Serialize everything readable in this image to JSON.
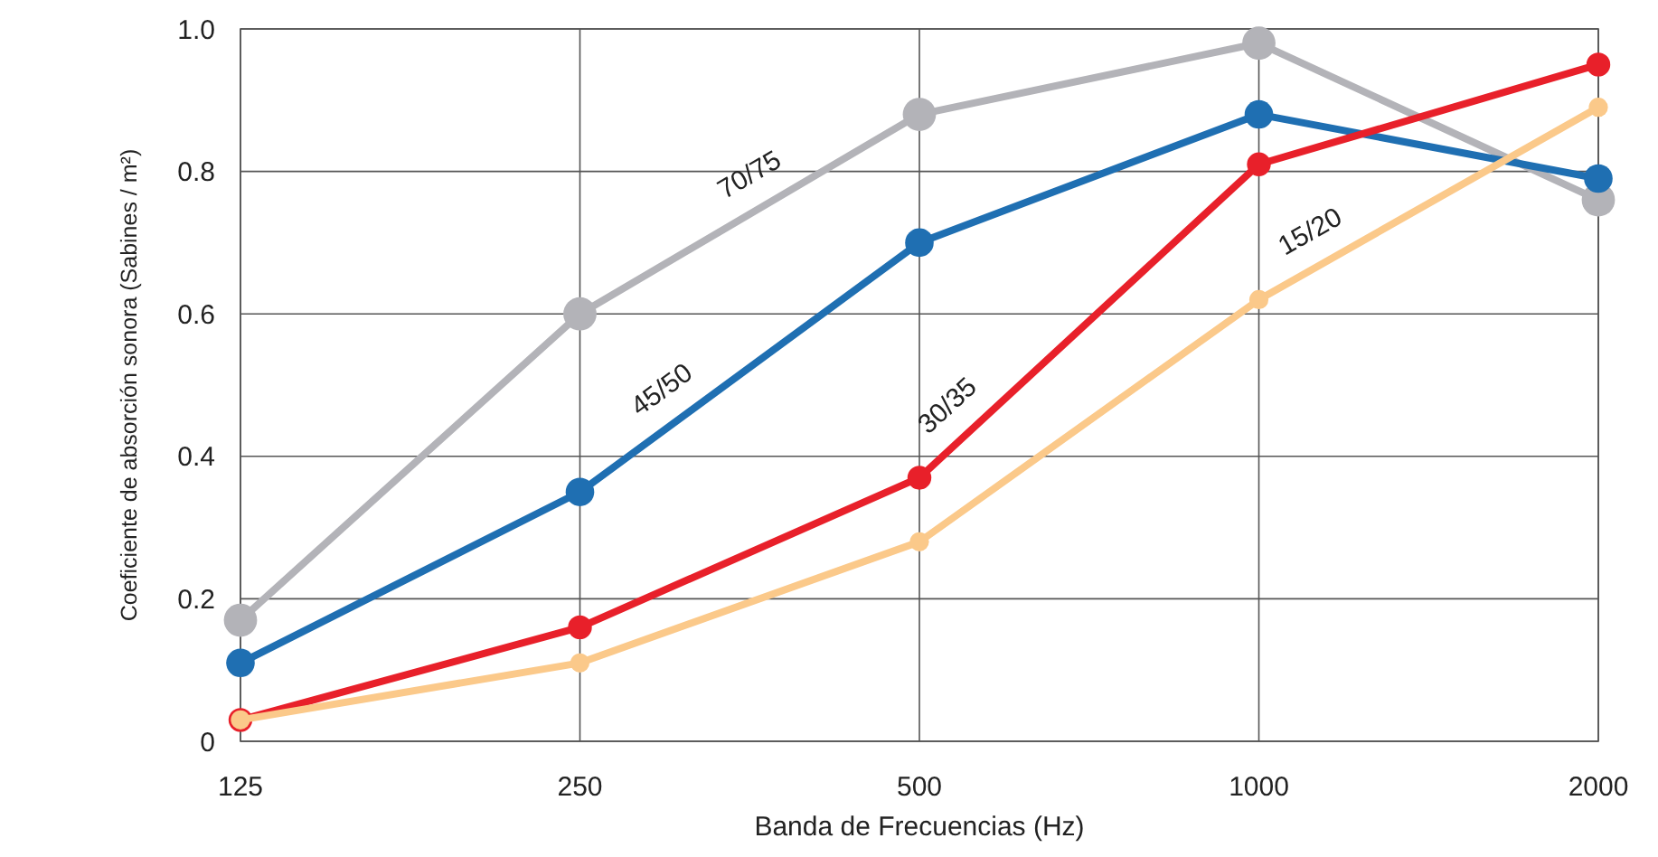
{
  "chart_data": {
    "type": "line",
    "xlabel": "Banda de Frecuencias (Hz)",
    "ylabel": "Coeficiente de absorción sonora (Sabines / m²)",
    "categories": [
      "125",
      "250",
      "500",
      "1000",
      "2000"
    ],
    "series": [
      {
        "name": "70/75",
        "color": "#b3b3b8",
        "values": [
          0.17,
          0.6,
          0.88,
          0.98,
          0.76
        ]
      },
      {
        "name": "45/50",
        "color": "#1f6fb2",
        "values": [
          0.11,
          0.35,
          0.7,
          0.88,
          0.79
        ]
      },
      {
        "name": "30/35",
        "color": "#e8202a",
        "values": [
          0.03,
          0.16,
          0.37,
          0.81,
          0.95
        ]
      },
      {
        "name": "15/20",
        "color": "#fbc98a",
        "values": [
          0.03,
          0.11,
          0.28,
          0.62,
          0.89
        ]
      }
    ],
    "ylim": [
      0,
      1
    ],
    "yticks": [
      0,
      0.2,
      0.4,
      0.6,
      0.8,
      {
        "value": 1,
        "label": "1.0"
      }
    ],
    "grid": true,
    "marker": "circle",
    "line_style": "solid"
  }
}
